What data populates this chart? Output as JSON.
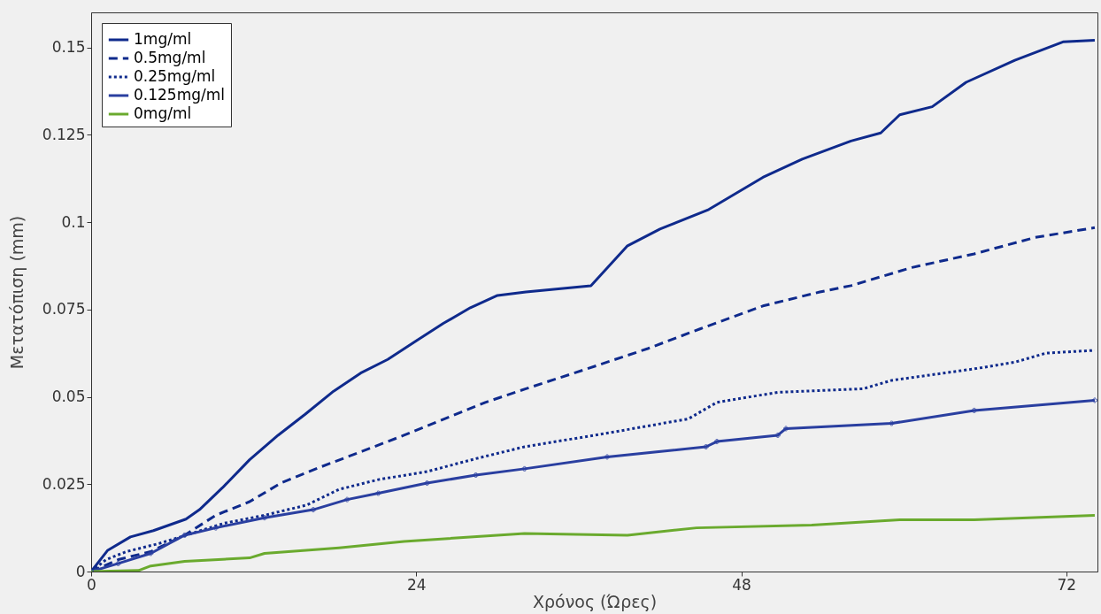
{
  "chart_data": {
    "type": "line",
    "xlabel": "Χρόνος (Ώρες)",
    "ylabel": "Μετατόπιση (mm)",
    "xlim": [
      0,
      74.3
    ],
    "ylim": [
      0,
      0.16
    ],
    "xticks": [
      0,
      24,
      48,
      72
    ],
    "yticks": [
      0,
      0.025,
      0.05,
      0.075,
      0.1,
      0.125,
      0.15
    ],
    "grid": false,
    "legend": "top left",
    "series": [
      {
        "name": "1mg/ml",
        "color": "#0f2a8c",
        "line_style": "solid",
        "x": [
          0,
          1.2,
          2.9,
          4.6,
          7,
          8,
          9.7,
          11.7,
          13.8,
          15.8,
          17.9,
          19.9,
          21.9,
          24,
          26,
          28,
          30,
          32.1,
          36.9,
          39.6,
          42,
          45.6,
          49.6,
          52.5,
          56.1,
          58.3,
          59.7,
          62.1,
          64.6,
          68.2,
          71.8,
          74.1
        ],
        "values": [
          0,
          0.006,
          0.0099,
          0.0117,
          0.015,
          0.0177,
          0.024,
          0.032,
          0.039,
          0.045,
          0.0516,
          0.0568,
          0.0607,
          0.066,
          0.071,
          0.0755,
          0.079,
          0.08,
          0.0818,
          0.0932,
          0.098,
          0.1036,
          0.1128,
          0.118,
          0.1232,
          0.1255,
          0.1307,
          0.133,
          0.14,
          0.1463,
          0.1516,
          0.152
        ]
      },
      {
        "name": "0.5mg/ml",
        "color": "#0f2a8c",
        "line_style": "dashed",
        "x": [
          0,
          2,
          4.4,
          6.9,
          9.2,
          11.7,
          14,
          17,
          20,
          23.1,
          26.1,
          29.1,
          32.1,
          36.6,
          41.1,
          45,
          49.6,
          53.8,
          56.1,
          60.6,
          65.2,
          69.7,
          74.1
        ],
        "values": [
          0,
          0.0034,
          0.0057,
          0.0104,
          0.0161,
          0.02,
          0.0253,
          0.03,
          0.0344,
          0.039,
          0.0437,
          0.0484,
          0.0523,
          0.058,
          0.0638,
          0.0695,
          0.076,
          0.08,
          0.0818,
          0.087,
          0.0909,
          0.0956,
          0.0984
        ]
      },
      {
        "name": "0.25mg/ml",
        "color": "#0f2a8c",
        "line_style": "dotted",
        "x": [
          0,
          1.1,
          2.6,
          5,
          7.5,
          9.8,
          12.8,
          15.9,
          18.3,
          21.2,
          24.8,
          28.4,
          32,
          38.1,
          44.1,
          46.2,
          50.7,
          57,
          59.1,
          65.2,
          68.2,
          70.5,
          74.1
        ],
        "values": [
          0,
          0.0034,
          0.0057,
          0.008,
          0.011,
          0.0138,
          0.0161,
          0.019,
          0.0235,
          0.0263,
          0.0286,
          0.0323,
          0.0357,
          0.0396,
          0.0437,
          0.0484,
          0.0513,
          0.0523,
          0.0547,
          0.058,
          0.0599,
          0.0625,
          0.0633
        ]
      },
      {
        "name": "0.125mg/ml",
        "color": "#2a3fa0",
        "line_style": "solid",
        "marker": "cross",
        "x": [
          0,
          2,
          4.4,
          6.9,
          9.2,
          12.8,
          16.4,
          18.9,
          21.2,
          24.8,
          28.4,
          32,
          38.1,
          45.4,
          46.2,
          50.7,
          51.3,
          59.1,
          65.2,
          74.1
        ],
        "values": [
          0,
          0.0023,
          0.0052,
          0.0104,
          0.0125,
          0.0154,
          0.0177,
          0.0206,
          0.0224,
          0.0253,
          0.0276,
          0.0294,
          0.0328,
          0.0357,
          0.0372,
          0.039,
          0.0409,
          0.0424,
          0.0461,
          0.049
        ]
      },
      {
        "name": "0mg/ml",
        "color": "#6aaa2e",
        "line_style": "solid",
        "x": [
          0,
          3.5,
          4.4,
          6.9,
          11.7,
          12.8,
          18.3,
          23.1,
          32,
          39.6,
          44.7,
          53.2,
          59.7,
          65.2,
          74.1
        ],
        "values": [
          0,
          0.0003,
          0.0016,
          0.0029,
          0.0039,
          0.0052,
          0.0068,
          0.0086,
          0.0109,
          0.0104,
          0.0125,
          0.0133,
          0.0148,
          0.0148,
          0.0161
        ]
      }
    ]
  }
}
